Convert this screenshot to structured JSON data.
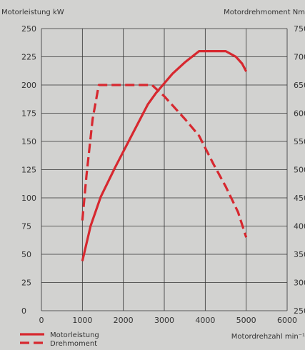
{
  "chart_data": {
    "type": "line",
    "y_left_label": "Motorleistung kW",
    "y_right_label": "Motordrehmoment Nm",
    "x_label": "Motordrehzahl min⁻¹",
    "x_ticks": [
      0,
      1000,
      2000,
      3000,
      4000,
      5000,
      6000
    ],
    "y_left_ticks": [
      0,
      25,
      50,
      75,
      100,
      125,
      150,
      175,
      200,
      225,
      250
    ],
    "y_right_ticks": [
      250,
      300,
      350,
      400,
      450,
      500,
      550,
      600,
      650,
      700,
      750
    ],
    "x_range": [
      0,
      6000
    ],
    "y_left_range": [
      0,
      250
    ],
    "y_right_range": [
      250,
      750
    ],
    "grid": true,
    "legend_position": "bottom-left",
    "series": [
      {
        "name": "Motorleistung",
        "axis": "left",
        "style": "solid",
        "color": "#d7282f",
        "points": [
          [
            1000,
            44
          ],
          [
            1200,
            75
          ],
          [
            1450,
            101
          ],
          [
            1800,
            127
          ],
          [
            2200,
            155
          ],
          [
            2600,
            183
          ],
          [
            2800,
            193
          ],
          [
            3200,
            210
          ],
          [
            3500,
            220
          ],
          [
            3850,
            230
          ],
          [
            4000,
            230
          ],
          [
            4500,
            230
          ],
          [
            4750,
            225
          ],
          [
            4900,
            219
          ],
          [
            5000,
            212
          ]
        ]
      },
      {
        "name": "Drehmoment",
        "axis": "right",
        "style": "dashed",
        "color": "#d7282f",
        "points": [
          [
            1000,
            410
          ],
          [
            1100,
            490
          ],
          [
            1250,
            590
          ],
          [
            1400,
            650
          ],
          [
            2000,
            650
          ],
          [
            2700,
            650
          ],
          [
            3000,
            630
          ],
          [
            3500,
            590
          ],
          [
            3850,
            560
          ],
          [
            4200,
            510
          ],
          [
            4500,
            470
          ],
          [
            4800,
            425
          ],
          [
            5000,
            380
          ]
        ]
      }
    ]
  }
}
